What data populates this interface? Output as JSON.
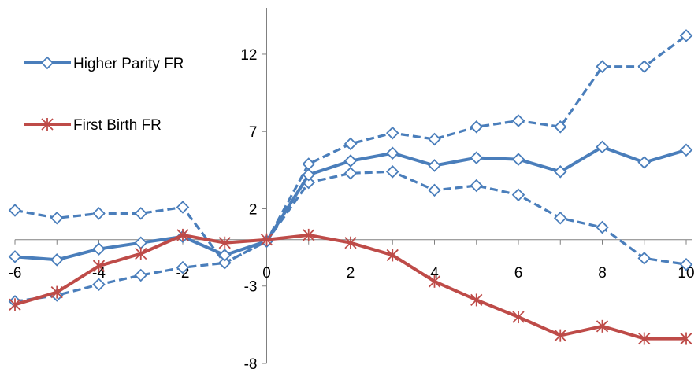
{
  "chart_data": {
    "type": "line",
    "title": "",
    "xlabel": "",
    "ylabel": "",
    "xlim": [
      -6,
      10
    ],
    "ylim": [
      -8,
      15
    ],
    "x_ticks": [
      -6,
      -4,
      -2,
      0,
      2,
      4,
      6,
      8,
      10
    ],
    "y_ticks": [
      12,
      7,
      2,
      -3,
      -8
    ],
    "grid": false,
    "legend_placement": "top-left",
    "x": [
      -6,
      -5,
      -4,
      -3,
      -2,
      -1,
      0,
      1,
      2,
      3,
      4,
      5,
      6,
      7,
      8,
      9,
      10
    ],
    "series": [
      {
        "name": "Higher Parity FR",
        "color": "#4a7ebb",
        "line_style": "solid",
        "marker": "diamond",
        "values": [
          -1.1,
          -1.3,
          -0.6,
          -0.2,
          0.2,
          -1.0,
          -0.1,
          4.2,
          5.1,
          5.6,
          4.8,
          5.3,
          5.2,
          4.4,
          6.0,
          5.0,
          5.8
        ]
      },
      {
        "name": "",
        "color": "#4a7ebb",
        "line_style": "dashed",
        "marker": "diamond",
        "values": [
          1.9,
          1.4,
          1.7,
          1.7,
          2.1,
          -1.5,
          -0.1,
          4.9,
          6.2,
          6.9,
          6.5,
          7.3,
          7.7,
          7.3,
          11.2,
          11.2,
          13.2
        ]
      },
      {
        "name": "",
        "color": "#4a7ebb",
        "line_style": "dashed",
        "marker": "diamond",
        "values": [
          -4.0,
          -3.6,
          -2.9,
          -2.3,
          -1.8,
          -1.5,
          -0.1,
          3.7,
          4.3,
          4.4,
          3.2,
          3.5,
          2.9,
          1.4,
          0.8,
          -1.2,
          -1.6
        ]
      },
      {
        "name": "First Birth FR",
        "color": "#be4b48",
        "line_style": "solid",
        "marker": "asterisk",
        "values": [
          -4.2,
          -3.4,
          -1.7,
          -0.9,
          0.3,
          -0.2,
          0.0,
          0.3,
          -0.2,
          -1.0,
          -2.7,
          -3.9,
          -5.0,
          -6.2,
          -5.6,
          -6.4,
          -6.4
        ]
      }
    ]
  }
}
